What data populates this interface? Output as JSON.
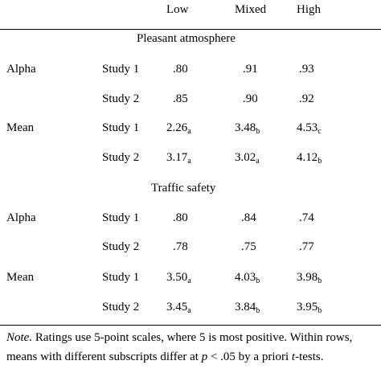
{
  "header": {
    "columns": [
      "Low",
      "Mixed",
      "High"
    ]
  },
  "sections": [
    {
      "title": "Pleasant atmosphere",
      "rows": [
        {
          "measure": "Alpha",
          "study": "Study 1",
          "cells": [
            {
              "v": ".80",
              "s": ""
            },
            {
              "v": ".91",
              "s": ""
            },
            {
              "v": ".93",
              "s": ""
            }
          ]
        },
        {
          "measure": "",
          "study": "Study 2",
          "cells": [
            {
              "v": ".85",
              "s": ""
            },
            {
              "v": ".90",
              "s": ""
            },
            {
              "v": ".92",
              "s": ""
            }
          ]
        },
        {
          "measure": "Mean",
          "study": "Study 1",
          "cells": [
            {
              "v": "2.26",
              "s": "a"
            },
            {
              "v": "3.48",
              "s": "b"
            },
            {
              "v": "4.53",
              "s": "c"
            }
          ]
        },
        {
          "measure": "",
          "study": "Study 2",
          "cells": [
            {
              "v": "3.17",
              "s": "a"
            },
            {
              "v": "3.02",
              "s": "a"
            },
            {
              "v": "4.12",
              "s": "b"
            }
          ]
        }
      ]
    },
    {
      "title": "Traffic safety",
      "rows": [
        {
          "measure": "Alpha",
          "study": "Study 1",
          "cells": [
            {
              "v": ".80",
              "s": ""
            },
            {
              "v": ".84",
              "s": ""
            },
            {
              "v": ".74",
              "s": ""
            }
          ]
        },
        {
          "measure": "",
          "study": "Study 2",
          "cells": [
            {
              "v": ".78",
              "s": ""
            },
            {
              "v": ".75",
              "s": ""
            },
            {
              "v": ".77",
              "s": ""
            }
          ]
        },
        {
          "measure": "Mean",
          "study": "Study 1",
          "cells": [
            {
              "v": "3.50",
              "s": "a"
            },
            {
              "v": "4.03",
              "s": "b"
            },
            {
              "v": "3.98",
              "s": "b"
            }
          ]
        },
        {
          "measure": "",
          "study": "Study 2",
          "cells": [
            {
              "v": "3.45",
              "s": "a"
            },
            {
              "v": "3.84",
              "s": "b"
            },
            {
              "v": "3.95",
              "s": "b"
            }
          ]
        }
      ]
    }
  ],
  "note": {
    "label": "Note.",
    "line1": " Ratings use 5-point scales, where 5 is most positive.  Within rows,",
    "line2_a": "means with different subscripts differ at ",
    "line2_p": "p",
    "line2_b": " < .05 by a priori ",
    "line2_t": "t",
    "line2_c": "-tests."
  }
}
